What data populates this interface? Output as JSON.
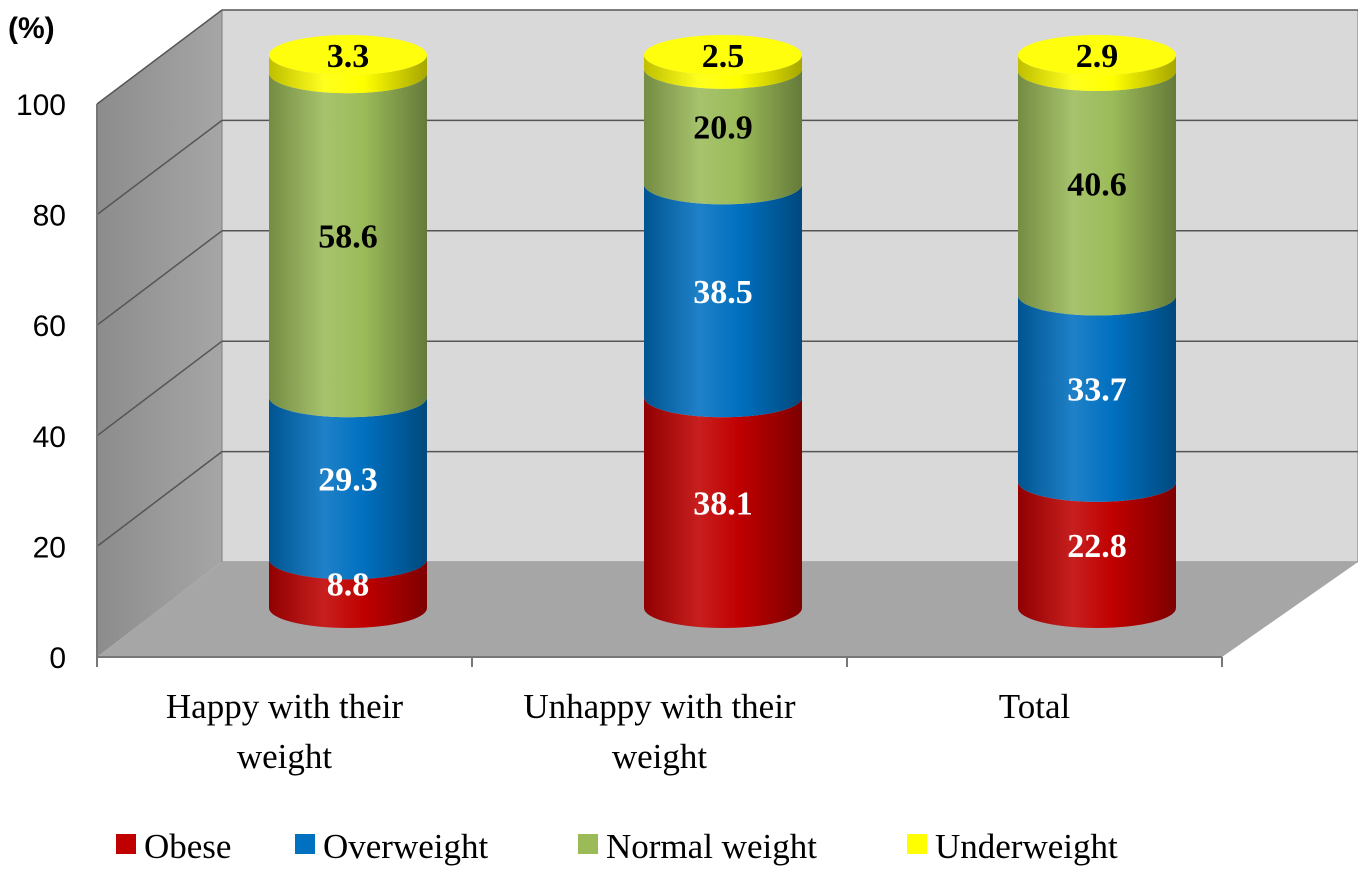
{
  "chart_data": {
    "type": "bar",
    "stacked": true,
    "style": "3d-cylinder",
    "title": "",
    "unit_label": "(%)",
    "xlabel": "",
    "ylabel": "",
    "ylim": [
      0,
      100
    ],
    "yticks": [
      "0",
      "20",
      "40",
      "60",
      "80",
      "100"
    ],
    "grid": true,
    "legend_position": "bottom",
    "categories": [
      [
        "Happy with their",
        "weight"
      ],
      [
        "Unhappy with their",
        "weight"
      ],
      [
        "Total"
      ]
    ],
    "series": [
      {
        "name": "Obese",
        "color": "#c00000",
        "label_color": "#ffffff",
        "values": [
          8.8,
          38.1,
          22.8
        ],
        "labels": [
          "8.8",
          "38.1",
          "22.8"
        ]
      },
      {
        "name": "Overweight",
        "color": "#0070c0",
        "label_color": "#ffffff",
        "values": [
          29.3,
          38.5,
          33.7
        ],
        "labels": [
          "29.3",
          "38.5",
          "33.7"
        ]
      },
      {
        "name": "Normal weight",
        "color": "#9bbb59",
        "label_color": "#000000",
        "values": [
          58.6,
          20.9,
          40.6
        ],
        "labels": [
          "58.6",
          "20.9",
          "40.6"
        ]
      },
      {
        "name": "Underweight",
        "color": "#ffff00",
        "label_color": "#000000",
        "values": [
          3.3,
          2.5,
          2.9
        ],
        "labels": [
          "3.3",
          "2.5",
          "2.9"
        ]
      }
    ]
  }
}
